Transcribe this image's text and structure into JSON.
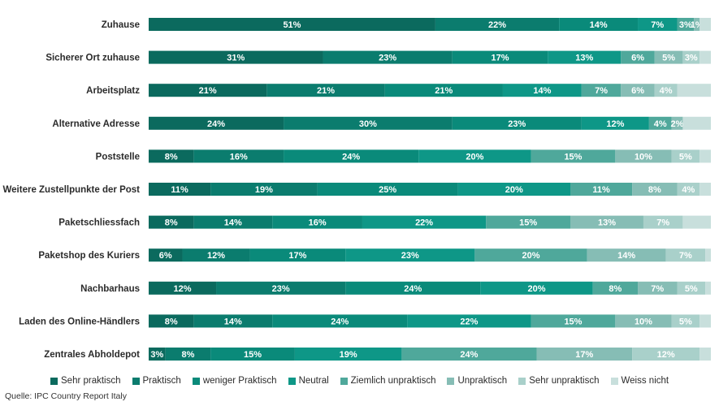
{
  "chart_data": {
    "type": "bar",
    "orientation": "horizontal",
    "stacked": true,
    "categories": [
      "Zuhause",
      "Sicherer Ort zuhause",
      "Arbeitsplatz",
      "Alternative Adresse",
      "Poststelle",
      "Weitere Zustellpunkte der Post",
      "Paketschliessfach",
      "Paketshop des Kuriers",
      "Nachbarhaus",
      "Laden des Online-Händlers",
      "Zentrales Abholdepot"
    ],
    "series": [
      {
        "name": "Sehr praktisch",
        "color": "#0b6a5e",
        "values": [
          51,
          31,
          21,
          24,
          8,
          11,
          8,
          6,
          12,
          8,
          3
        ]
      },
      {
        "name": "Praktisch",
        "color": "#0b7c6e",
        "values": [
          22,
          23,
          21,
          30,
          16,
          19,
          14,
          12,
          23,
          14,
          8
        ]
      },
      {
        "name": "weniger Praktisch",
        "color": "#0a8a7a",
        "values": [
          14,
          17,
          21,
          23,
          24,
          25,
          16,
          17,
          24,
          24,
          15
        ]
      },
      {
        "name": "Neutral",
        "color": "#0e9787",
        "values": [
          7,
          13,
          14,
          12,
          20,
          20,
          22,
          23,
          20,
          22,
          19
        ]
      },
      {
        "name": "Ziemlich unpraktisch",
        "color": "#4fa89b",
        "values": [
          3,
          6,
          7,
          4,
          15,
          11,
          15,
          20,
          8,
          15,
          24
        ]
      },
      {
        "name": "Unpraktisch",
        "color": "#86bdb5",
        "values": [
          1,
          5,
          6,
          2,
          10,
          8,
          13,
          14,
          7,
          10,
          17
        ]
      },
      {
        "name": "Sehr unpraktisch",
        "color": "#a9d0ca",
        "values": [
          null,
          3,
          4,
          null,
          5,
          4,
          7,
          7,
          5,
          5,
          12
        ]
      },
      {
        "name": "Weiss nicht",
        "color": "#c8dfdc",
        "values": [
          null,
          null,
          null,
          null,
          null,
          null,
          null,
          null,
          null,
          null,
          null
        ]
      }
    ],
    "value_suffix": "%",
    "legend_position": "bottom",
    "grid": false
  },
  "source": "Quelle: IPC Country Report Italy"
}
